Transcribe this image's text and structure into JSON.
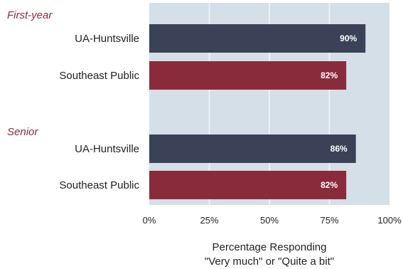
{
  "chart_data": {
    "type": "bar",
    "orientation": "horizontal",
    "title": "",
    "xlabel": [
      "Percentage Responding",
      "\"Very much\" or \"Quite a bit\""
    ],
    "ylabel": "",
    "xlim": [
      0,
      100
    ],
    "xticks": [
      0,
      25,
      50,
      75,
      100
    ],
    "xtick_labels": [
      "0%",
      "25%",
      "50%",
      "75%",
      "100%"
    ],
    "grid": true,
    "groups": [
      {
        "name": "First-year",
        "bars": [
          {
            "category": "UA-Huntsville",
            "value": 90,
            "label": "90%"
          },
          {
            "category": "Southeast Public",
            "value": 82,
            "label": "82%"
          }
        ]
      },
      {
        "name": "Senior",
        "bars": [
          {
            "category": "UA-Huntsville",
            "value": 86,
            "label": "86%"
          },
          {
            "category": "Southeast Public",
            "value": 82,
            "label": "82%"
          }
        ]
      }
    ],
    "colors": {
      "UA-Huntsville": "#3b4257",
      "Southeast Public": "#8a2b3c",
      "plot_background": "#d4dfe8",
      "gridline": "#eef2f6",
      "group_label": "#8a2b3c"
    }
  }
}
